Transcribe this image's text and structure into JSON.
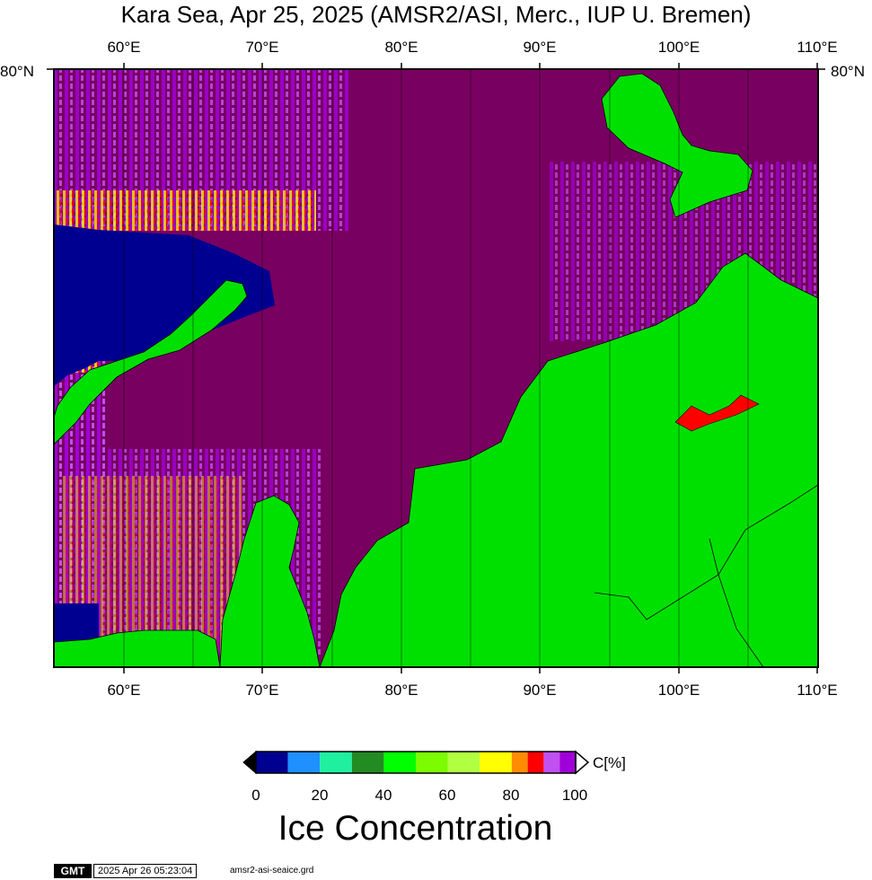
{
  "title": "Kara Sea, Apr 25, 2025 (AMSR2/ASI, Merc., IUP U. Bremen)",
  "map": {
    "longitude_ticks": [
      "60°E",
      "70°E",
      "80°E",
      "90°E",
      "100°E",
      "110°E"
    ],
    "latitude_label": "80°N",
    "land_color": "#00e000",
    "ice_colors": {
      "full": "#780060",
      "high": "#a000d8",
      "open_water": "#000090"
    }
  },
  "colorbar": {
    "ticks": [
      "0",
      "20",
      "40",
      "60",
      "80",
      "100"
    ],
    "unit": "C[%]",
    "colors": [
      "#000090",
      "#1e90ff",
      "#1ef0a0",
      "#228b22",
      "#00ff00",
      "#7cfc00",
      "#b0ff40",
      "#ffff00",
      "#ff8c00",
      "#ff0000",
      "#c050f0",
      "#a000d8"
    ],
    "title": "Ice Concentration"
  },
  "footer": {
    "logo": "GMT",
    "timestamp": "2025 Apr 26 05:23:04",
    "grid_file": "amsr2-asi-seaice.grd"
  }
}
